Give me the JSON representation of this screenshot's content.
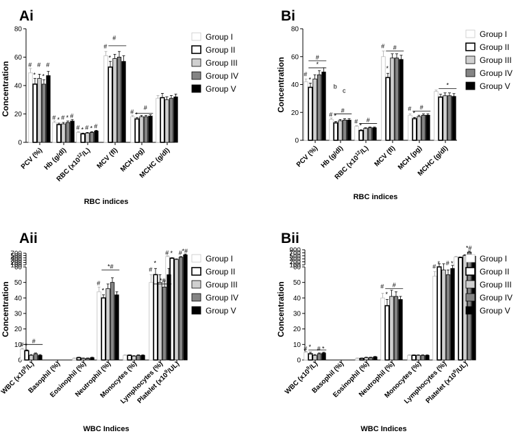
{
  "figure": {
    "width": 756,
    "height": 640
  },
  "legend": [
    {
      "name": "Group I",
      "color": "#ffffff"
    },
    {
      "name": "Group II",
      "color": "#ffffff"
    },
    {
      "name": "Group III",
      "color": "#d0d0d0"
    },
    {
      "name": "Group IV",
      "color": "#848484"
    },
    {
      "name": "Group V",
      "color": "#000000"
    }
  ],
  "chart_data": [
    {
      "id": "Ai",
      "type": "bar",
      "panel_label": "Ai",
      "ylabel": "Concentration",
      "xlabel": "RBC indices",
      "ylim": [
        0,
        80
      ],
      "yticks": [
        "0",
        "20",
        "40",
        "60",
        "80"
      ],
      "categories": [
        "PCV (%)",
        "Hb (g/dl)",
        "RBC (x10^12/L)",
        "MCV (fl)",
        "MCH (pg)",
        "MCHC (g/dl)"
      ],
      "series": [
        {
          "name": "Group I",
          "values": [
            49,
            14,
            7,
            61,
            18,
            31
          ],
          "errors": [
            3,
            1,
            0.5,
            3,
            1,
            2
          ]
        },
        {
          "name": "Group II",
          "values": [
            41,
            12.5,
            6,
            53,
            16.5,
            31.5
          ],
          "errors": [
            4,
            1,
            0.5,
            4,
            1,
            3
          ]
        },
        {
          "name": "Group III",
          "values": [
            45,
            13,
            6.5,
            59,
            18,
            30
          ],
          "errors": [
            3,
            1,
            0.5,
            3,
            1,
            2
          ]
        },
        {
          "name": "Group IV",
          "values": [
            41,
            14,
            7,
            60,
            18,
            31
          ],
          "errors": [
            3,
            1,
            0.5,
            4,
            1,
            2
          ]
        },
        {
          "name": "Group V",
          "values": [
            47,
            15,
            8,
            57,
            18.5,
            32
          ],
          "errors": [
            3,
            1,
            0.5,
            4,
            1,
            2
          ]
        }
      ],
      "annotations": [
        {
          "text": "#",
          "cat": 0,
          "bar": 0,
          "y": 53
        },
        {
          "text": "*",
          "cat": 0,
          "bar": 1,
          "y": 46
        },
        {
          "text": "#",
          "cat": 0,
          "bar": 2,
          "y": 53
        },
        {
          "text": "*",
          "cat": 0,
          "bar": 3,
          "y": 45
        },
        {
          "text": "#",
          "cat": 0,
          "bar": 4,
          "y": 53
        },
        {
          "text": "#",
          "cat": 1,
          "bar": 0,
          "y": 16
        },
        {
          "text": "*",
          "cat": 1,
          "bar": 1,
          "y": 14.5
        },
        {
          "text": "#",
          "cat": 1,
          "bar": 2,
          "y": 16
        },
        {
          "text": "*",
          "cat": 1,
          "bar": 3,
          "y": 16
        },
        {
          "text": "#",
          "cat": 1,
          "bar": 4,
          "y": 17
        },
        {
          "text": "#",
          "cat": 2,
          "bar": 0,
          "y": 9
        },
        {
          "text": "*",
          "cat": 2,
          "bar": 1,
          "y": 7.5
        },
        {
          "text": "#",
          "cat": 2,
          "bar": 2,
          "y": 9
        },
        {
          "text": "*",
          "cat": 2,
          "bar": 3,
          "y": 8.5
        },
        {
          "text": "#",
          "cat": 2,
          "bar": 4,
          "y": 10
        },
        {
          "text": "#",
          "cat": 3,
          "bar": 0,
          "y": 66
        },
        {
          "text": "*",
          "cat": 3,
          "bar": 1,
          "y": 58
        },
        {
          "text": "#",
          "cat": 3,
          "bar": 2,
          "y": 72
        },
        {
          "text": "#",
          "cat": 4,
          "bar": 0,
          "y": 20
        },
        {
          "text": "*",
          "cat": 4,
          "bar": 1,
          "y": 18
        },
        {
          "text": "#",
          "cat": 4,
          "bar": 3,
          "y": 23
        }
      ],
      "sig_lines": [
        {
          "cat": 3,
          "from": 1,
          "to": 4,
          "y": 68
        },
        {
          "cat": 4,
          "from": 1,
          "to": 4,
          "y": 20.5
        }
      ]
    },
    {
      "id": "Bi",
      "type": "bar",
      "panel_label": "Bi",
      "ylabel": "Concentration",
      "xlabel": "RBC indices",
      "ylim": [
        0,
        80
      ],
      "yticks": [
        "0",
        "20",
        "40",
        "60",
        "80"
      ],
      "categories": [
        "PCV (%)",
        "Hb (g/dl)",
        "RBC (x10^12/L)",
        "MCV (fl)",
        "MCH (pg)",
        "MCHC (g/dl)"
      ],
      "series": [
        {
          "name": "Group I",
          "values": [
            42,
            15,
            10,
            60,
            18,
            35
          ],
          "errors": [
            2,
            1,
            0.5,
            4,
            1,
            1
          ]
        },
        {
          "name": "Group II",
          "values": [
            38,
            12.5,
            7,
            45,
            15.5,
            31
          ],
          "errors": [
            3,
            1,
            0.5,
            3,
            1,
            2
          ]
        },
        {
          "name": "Group III",
          "values": [
            44,
            14,
            8.5,
            59,
            17,
            32
          ],
          "errors": [
            3,
            1,
            0.5,
            3,
            1,
            2
          ]
        },
        {
          "name": "Group IV",
          "values": [
            47,
            14.5,
            9,
            59,
            18,
            32
          ],
          "errors": [
            3,
            1,
            0.5,
            3,
            1,
            2
          ]
        },
        {
          "name": "Group V",
          "values": [
            49,
            14.5,
            9,
            58,
            18,
            31.5
          ],
          "errors": [
            3,
            1,
            0.5,
            3,
            1,
            2
          ]
        }
      ],
      "annotations": [
        {
          "text": "#",
          "cat": 0,
          "bar": 0,
          "y": 46
        },
        {
          "text": "*",
          "cat": 0,
          "bar": 1,
          "y": 42
        },
        {
          "text": "#",
          "cat": 1,
          "bar": 0,
          "y": 17
        },
        {
          "text": "*",
          "cat": 1,
          "bar": 1,
          "y": 16
        },
        {
          "text": "#",
          "cat": 2,
          "bar": 0,
          "y": 12
        },
        {
          "text": "*",
          "cat": 2,
          "bar": 1,
          "y": 9
        },
        {
          "text": "#",
          "cat": 3,
          "bar": 0,
          "y": 66
        },
        {
          "text": "*",
          "cat": 3,
          "bar": 1,
          "y": 50
        },
        {
          "text": "#",
          "cat": 4,
          "bar": 0,
          "y": 21
        },
        {
          "text": "*",
          "cat": 4,
          "bar": 1,
          "y": 18
        },
        {
          "text": "b",
          "cat": 1,
          "bar": 1,
          "y": 37
        },
        {
          "text": "c",
          "cat": 1,
          "bar": 3,
          "y": 34
        }
      ],
      "sig_lines": [
        {
          "cat": 0,
          "from": 1,
          "to": 4,
          "y": 57,
          "text": "#"
        },
        {
          "cat": 0,
          "from": 1,
          "to": 4,
          "y": 52,
          "text": "*"
        },
        {
          "cat": 1,
          "from": 1,
          "to": 4,
          "y": 19,
          "text": "#"
        },
        {
          "cat": 2,
          "from": 1,
          "to": 4,
          "y": 12,
          "text": "#"
        },
        {
          "cat": 3,
          "from": 1,
          "to": 4,
          "y": 64,
          "text": "#"
        },
        {
          "cat": 4,
          "from": 1,
          "to": 4,
          "y": 21,
          "text": "#"
        },
        {
          "cat": 5,
          "from": 1,
          "to": 4,
          "y": 37,
          "text": "*"
        }
      ]
    },
    {
      "id": "Aii",
      "type": "bar",
      "panel_label": "Aii",
      "ylabel": "Concentration",
      "xlabel": "WBC Indices",
      "broken_axis": true,
      "lower_ylim": [
        0,
        60
      ],
      "upper_ylim": [
        100,
        800
      ],
      "lower_ticks": [
        "0",
        "10",
        "20",
        "30",
        "40",
        "50",
        "60"
      ],
      "upper_ticks": [
        "100",
        "200",
        "300",
        "400",
        "500",
        "700"
      ],
      "categories": [
        "WBC (x10^9/L)",
        "Basophil (%)",
        "Eosinophil (%)",
        "Neutrophil (%)",
        "Monocytes (%)",
        "Lymphocytes (%)",
        "Platelet (x10^9/UL)"
      ],
      "series": [
        {
          "name": "Group I",
          "values": [
            7,
            0,
            1,
            44,
            3,
            50,
            600
          ],
          "errors": [
            0.5,
            0,
            0.3,
            3,
            0.3,
            5,
            40
          ]
        },
        {
          "name": "Group II",
          "values": [
            6,
            0,
            1.5,
            40,
            3,
            55,
            500
          ],
          "errors": [
            0.5,
            0,
            0.3,
            2,
            0.3,
            4,
            30
          ]
        },
        {
          "name": "Group III",
          "values": [
            3,
            0,
            1,
            46,
            2.5,
            50,
            430
          ],
          "errors": [
            0.5,
            0,
            0.3,
            3,
            0.3,
            5,
            30
          ]
        },
        {
          "name": "Group IV",
          "values": [
            4,
            0,
            1,
            50,
            3,
            47,
            560
          ],
          "errors": [
            0.5,
            0,
            0.3,
            3,
            0.3,
            4,
            40
          ]
        },
        {
          "name": "Group V",
          "values": [
            3,
            0,
            1.5,
            42,
            3,
            55,
            700
          ],
          "errors": [
            0.5,
            0,
            0.3,
            2,
            0.3,
            4,
            50
          ]
        }
      ],
      "annotations": [
        {
          "text": "#",
          "cat": 0,
          "bar": 0,
          "y": 8.5
        },
        {
          "text": "*",
          "cat": 0,
          "bar": 1,
          "y": 8
        },
        {
          "text": "#",
          "cat": 3,
          "bar": 0,
          "y": 48
        },
        {
          "text": "*",
          "cat": 3,
          "bar": 1,
          "y": 43.5
        },
        {
          "text": "#",
          "cat": 5,
          "bar": 0,
          "y": 57
        },
        {
          "text": "*",
          "cat": 5,
          "bar": 1,
          "y": 61
        },
        {
          "text": "#",
          "cat": 6,
          "bar": 0,
          "y": 690
        },
        {
          "text": "*",
          "cat": 6,
          "bar": 1,
          "y": 680
        },
        {
          "text": "#",
          "cat": 6,
          "bar": 3,
          "y": 690
        },
        {
          "text": "*#",
          "cat": 6,
          "bar": 4,
          "y": 790
        }
      ],
      "sig_lines": [
        {
          "cat": 0,
          "from": 1,
          "to": 4,
          "y": 10,
          "text": "#"
        },
        {
          "cat": 3,
          "from": 1,
          "to": 4,
          "y": 58,
          "text": "*#"
        },
        {
          "cat": 5,
          "from": 1,
          "to": 4,
          "y": 49,
          "text": "*#"
        }
      ]
    },
    {
      "id": "Bii",
      "type": "bar",
      "panel_label": "Bii",
      "ylabel": "Concentration",
      "xlabel": "WBC Indices",
      "broken_axis": true,
      "lower_ylim": [
        0,
        60
      ],
      "upper_ylim": [
        100,
        900
      ],
      "lower_ticks": [
        "0",
        "10",
        "20",
        "30",
        "40",
        "50",
        "60"
      ],
      "upper_ticks": [
        "100",
        "200",
        "300",
        "500",
        "700",
        "900"
      ],
      "categories": [
        "WBC (x10^9/L)",
        "Basophil (%)",
        "Eosinophil (%)",
        "Neutrophil (%)",
        "Monocytes (%)",
        "Lymphocytes (%)",
        "Platelet (x10^9/UL)"
      ],
      "series": [
        {
          "name": "Group I",
          "values": [
            5,
            0,
            1,
            40,
            3,
            54,
            520
          ],
          "errors": [
            0.5,
            0,
            0.3,
            3,
            0.3,
            3,
            30
          ]
        },
        {
          "name": "Group II",
          "values": [
            4,
            0,
            1,
            35,
            3,
            60,
            490
          ],
          "errors": [
            1,
            0,
            0.3,
            4,
            0.3,
            2,
            30
          ]
        },
        {
          "name": "Group III",
          "values": [
            3,
            0,
            1.5,
            41,
            3,
            58,
            600
          ],
          "errors": [
            0.5,
            0,
            0.3,
            4,
            0.3,
            4,
            40
          ]
        },
        {
          "name": "Group IV",
          "values": [
            4,
            0,
            1.5,
            41,
            3,
            55,
            780
          ],
          "errors": [
            0.5,
            0,
            0.3,
            3,
            0.3,
            3,
            50
          ]
        },
        {
          "name": "Group V",
          "values": [
            4.5,
            0,
            2,
            39,
            3,
            59,
            560
          ],
          "errors": [
            0.5,
            0,
            0.3,
            2,
            0.3,
            2,
            50
          ]
        }
      ],
      "annotations": [
        {
          "text": "#",
          "cat": 0,
          "bar": 0,
          "y": 6
        },
        {
          "text": "*",
          "cat": 0,
          "bar": 1,
          "y": 7
        },
        {
          "text": "#",
          "cat": 0,
          "bar": 3,
          "y": 6
        },
        {
          "text": "*",
          "cat": 0,
          "bar": 4,
          "y": 6
        },
        {
          "text": "#",
          "cat": 3,
          "bar": 0,
          "y": 46
        },
        {
          "text": "*",
          "cat": 3,
          "bar": 1,
          "y": 41
        },
        {
          "text": "#",
          "cat": 5,
          "bar": 0,
          "y": 59
        },
        {
          "text": "*",
          "cat": 5,
          "bar": 1,
          "y": 64
        },
        {
          "text": "#",
          "cat": 5,
          "bar": 3,
          "y": 61
        },
        {
          "text": "*",
          "cat": 5,
          "bar": 4,
          "y": 63
        },
        {
          "text": "*#",
          "cat": 6,
          "bar": 3,
          "y": 880
        }
      ],
      "sig_lines": [
        {
          "cat": 0,
          "from": 1,
          "to": 4,
          "y": 6.5
        },
        {
          "cat": 3,
          "from": 1,
          "to": 4,
          "y": 46,
          "text": "#"
        }
      ]
    }
  ]
}
